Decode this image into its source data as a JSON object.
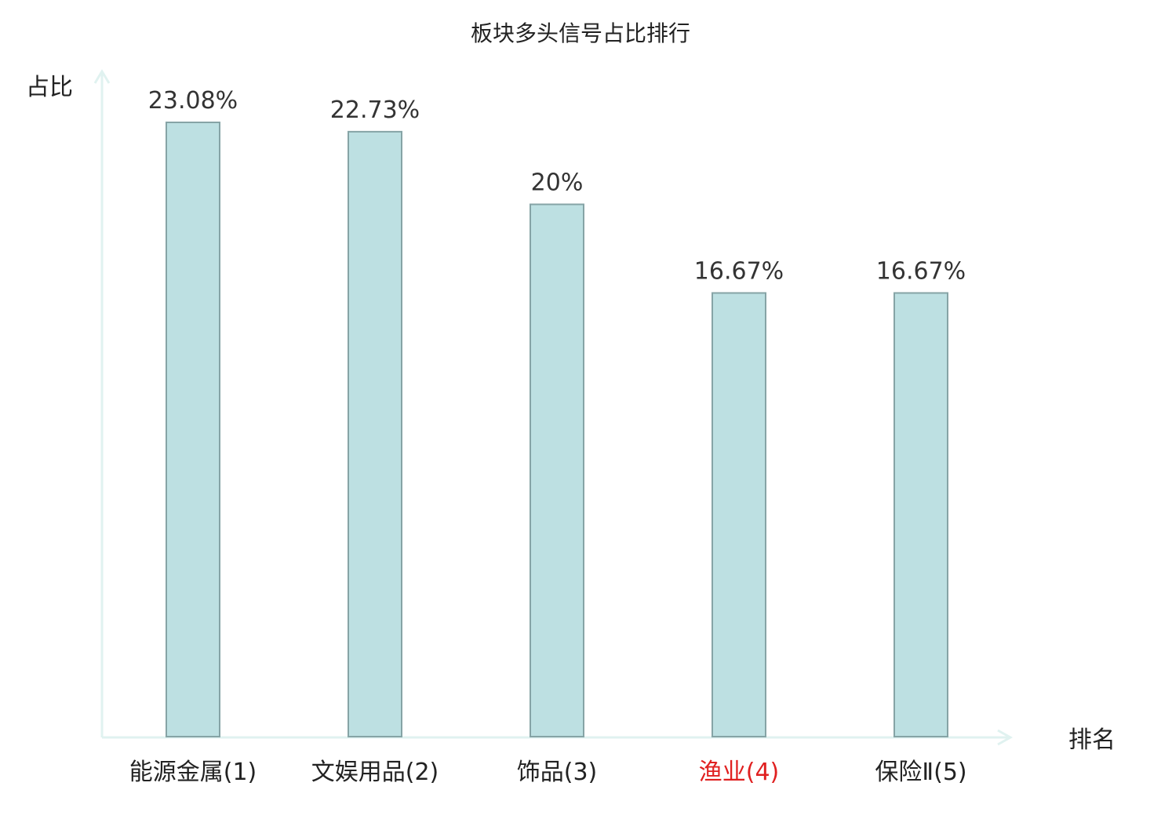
{
  "chart_data": {
    "type": "bar",
    "title": "板块多头信号占比排行",
    "ylabel": "占比",
    "xlabel": "排名",
    "categories": [
      "能源金属(1)",
      "文娱用品(2)",
      "饰品(3)",
      "渔业(4)",
      "保险Ⅱ(5)"
    ],
    "values": [
      23.08,
      22.73,
      20,
      16.67,
      16.67
    ],
    "value_labels": [
      "23.08%",
      "22.73%",
      "20%",
      "16.67%",
      "16.67%"
    ],
    "highlight_index": 3,
    "ylim": [
      0,
      23.08
    ],
    "grid": false,
    "legend": "none"
  },
  "colors": {
    "bar_fill": "#bde0e2",
    "bar_stroke": "#86a4a6",
    "axis": "#e0f2f0",
    "text": "#222222",
    "value_text": "#333333",
    "highlight_text": "#e02020"
  }
}
